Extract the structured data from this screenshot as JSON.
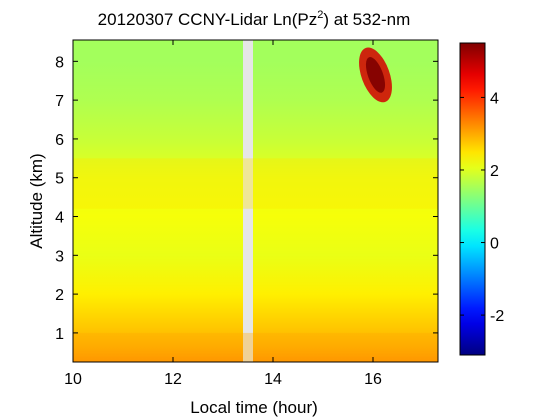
{
  "chart_data": {
    "type": "heatmap",
    "title": {
      "prefix": "20120307 CCNY-Lidar Ln(Pz",
      "superscript": "2",
      "suffix": ") at 532-nm"
    },
    "xlabel": "Local time (hour)",
    "ylabel": "Altitude (km)",
    "xlim": [
      10,
      17.3
    ],
    "ylim": [
      0.25,
      8.55
    ],
    "xticks": [
      10,
      12,
      14,
      16
    ],
    "yticks": [
      1,
      2,
      3,
      4,
      5,
      6,
      7,
      8
    ],
    "colorbar": {
      "range": [
        -3.1,
        5.5
      ],
      "ticks": [
        -2,
        0,
        2,
        4
      ],
      "tick_labels": [
        "-2",
        "0",
        "2",
        "4"
      ],
      "colormap": "jet"
    },
    "missing_data_interval": [
      13.4,
      13.6
    ],
    "approx_field_profile": [
      {
        "altitude": 0.3,
        "value": 3.2
      },
      {
        "altitude": 0.6,
        "value": 3.0
      },
      {
        "altitude": 1.0,
        "value": 2.8
      },
      {
        "altitude": 2.0,
        "value": 2.4
      },
      {
        "altitude": 3.0,
        "value": 2.1
      },
      {
        "altitude": 4.0,
        "value": 2.2
      },
      {
        "altitude": 5.0,
        "value": 2.1
      },
      {
        "altitude": 6.0,
        "value": 1.8
      },
      {
        "altitude": 7.0,
        "value": 1.6
      },
      {
        "altitude": 8.0,
        "value": 1.5
      }
    ],
    "features": [
      {
        "name": "surface boundary layer",
        "altitude_range": [
          0.25,
          1.0
        ],
        "value": 3.0
      },
      {
        "name": "aerosol layer",
        "altitude_range": [
          4.2,
          5.5
        ],
        "value": 2.5
      },
      {
        "name": "thin cloud",
        "time_range": [
          15.6,
          16.5
        ],
        "altitude_range": [
          6.8,
          8.5
        ],
        "value": 4.8
      }
    ]
  }
}
